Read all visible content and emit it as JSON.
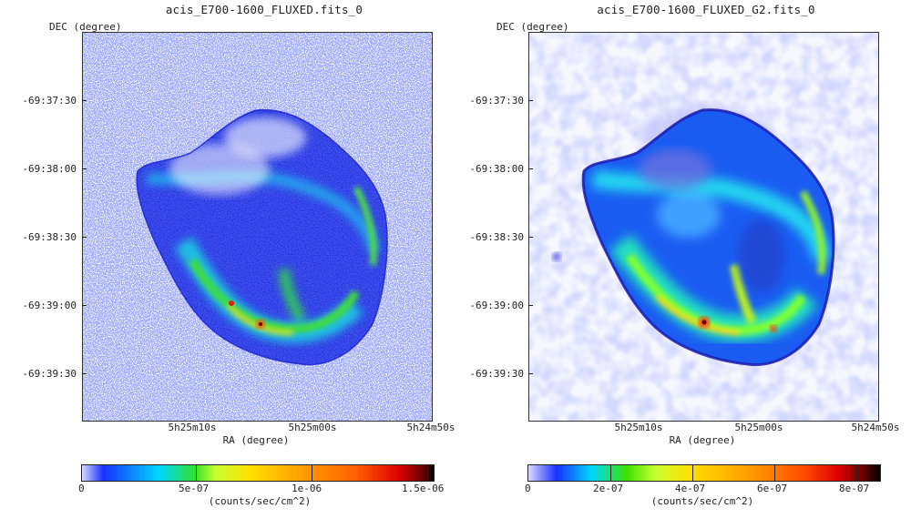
{
  "panels": [
    {
      "title": "acis_E700-1600_FLUXED.fits_0",
      "ylabel": "DEC (degree)",
      "xlabel": "RA (degree)",
      "yticks": [
        "-69:37:30",
        "-69:38:00",
        "-69:38:30",
        "-69:39:00",
        "-69:39:30"
      ],
      "xticks": [
        "5h25m10s",
        "5h25m00s",
        "5h24m50s"
      ],
      "colorbar": {
        "label": "(counts/sec/cm^2)",
        "ticks": [
          "0",
          "5e-07",
          "1e-06",
          "1.5e-06"
        ]
      }
    },
    {
      "title": "acis_E700-1600_FLUXED_G2.fits_0",
      "ylabel": "DEC (degree)",
      "xlabel": "RA (degree)",
      "yticks": [
        "-69:37:30",
        "-69:38:00",
        "-69:38:30",
        "-69:39:00",
        "-69:39:30"
      ],
      "xticks": [
        "5h25m10s",
        "5h25m00s",
        "5h24m50s"
      ],
      "colorbar": {
        "label": "(counts/sec/cm^2)",
        "ticks": [
          "0",
          "2e-07",
          "4e-07",
          "6e-07",
          "8e-07"
        ]
      }
    }
  ]
}
